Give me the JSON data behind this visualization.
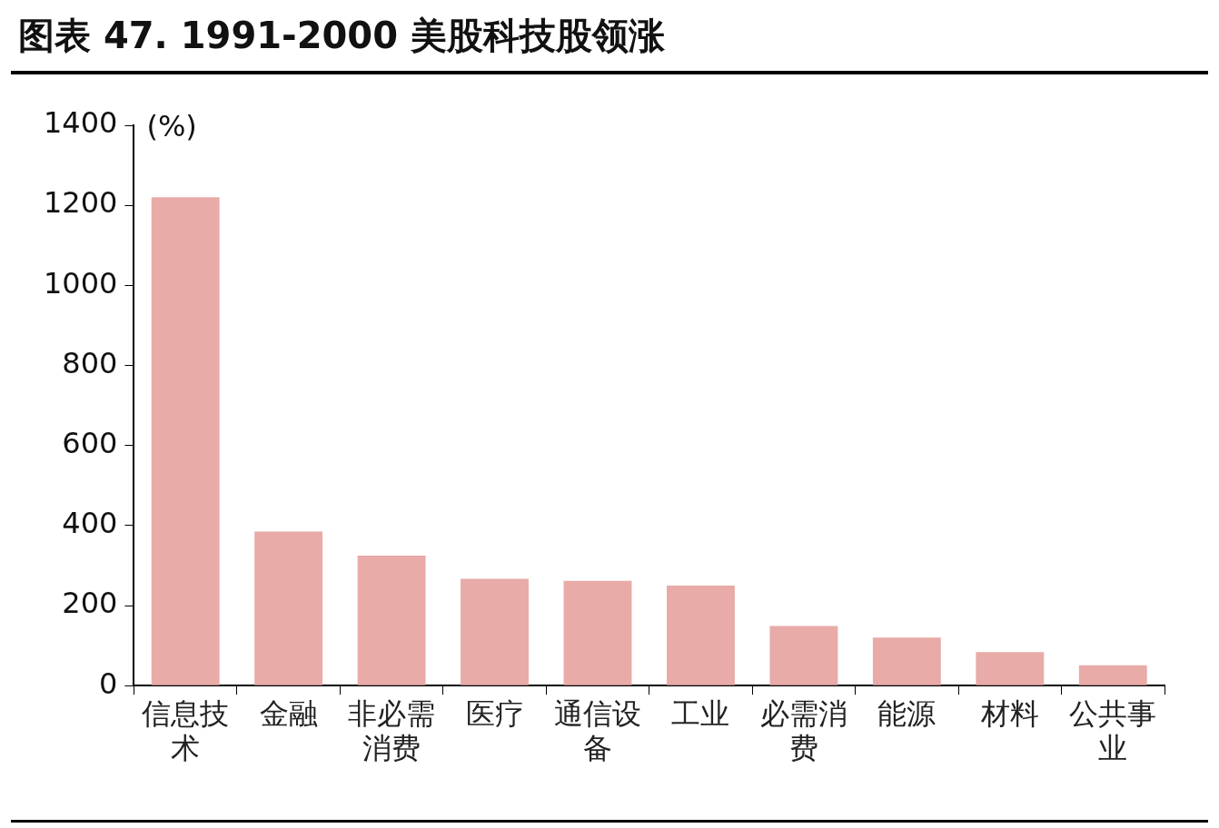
{
  "chart_data": {
    "type": "bar",
    "title": "图表 47. 1991-2000 美股科技股领涨",
    "ylabel": "(%)",
    "categories": [
      "信息技术",
      "金融",
      "非必需消费",
      "医疗",
      "通信设备",
      "工业",
      "必需消费",
      "能源",
      "材料",
      "公共事业"
    ],
    "values": [
      1220,
      385,
      325,
      267,
      262,
      250,
      149,
      120,
      84,
      51
    ],
    "color": "#e8aba7",
    "ylim": [
      0,
      1400
    ],
    "yticks": [
      0,
      200,
      400,
      600,
      800,
      1000,
      1200,
      1400
    ],
    "grid": false,
    "legend": false
  }
}
